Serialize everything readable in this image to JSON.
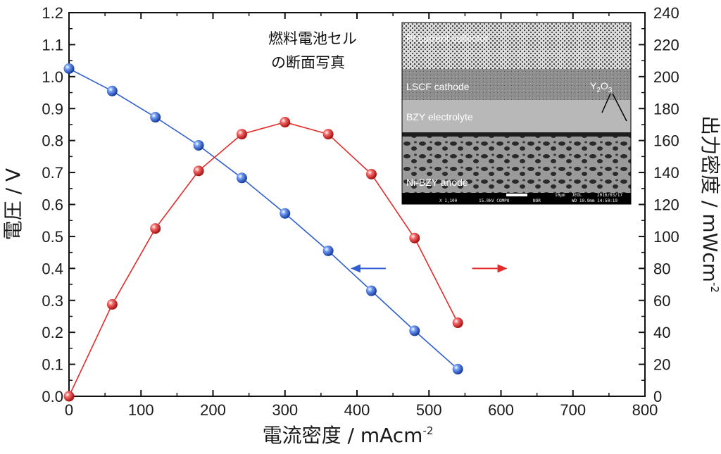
{
  "chart_data": {
    "type": "line",
    "x_axis": {
      "label": "電流密度 / mAcm",
      "label_sup": "-2",
      "range": [
        0,
        800
      ],
      "ticks": [
        0,
        100,
        200,
        300,
        400,
        500,
        600,
        700,
        800
      ]
    },
    "y_left": {
      "label": "電圧 / V",
      "range": [
        0.0,
        1.2
      ],
      "ticks": [
        "0.0",
        "0.1",
        "0.2",
        "0.3",
        "0.4",
        "0.5",
        "0.6",
        "0.7",
        "0.8",
        "0.9",
        "1.0",
        "1.1",
        "1.2"
      ]
    },
    "y_right": {
      "label": "出力密度 / mWcm",
      "label_sup": "-2",
      "range": [
        0,
        240
      ],
      "ticks": [
        0,
        20,
        40,
        60,
        80,
        100,
        120,
        140,
        160,
        180,
        200,
        220,
        240
      ]
    },
    "series": [
      {
        "axis": "left",
        "color": "#2f5fd0",
        "x": [
          0,
          60,
          120,
          180,
          240,
          300,
          360,
          420,
          480,
          540
        ],
        "y": [
          1.025,
          0.955,
          0.873,
          0.785,
          0.683,
          0.572,
          0.455,
          0.33,
          0.205,
          0.085
        ]
      },
      {
        "axis": "right",
        "color": "#e52a2a",
        "x": [
          0,
          60,
          120,
          180,
          240,
          300,
          360,
          420,
          480,
          540
        ],
        "y": [
          0,
          57.5,
          105,
          141,
          164,
          171.5,
          164,
          139,
          99,
          46
        ]
      }
    ],
    "arrows": [
      {
        "direction": "left",
        "color": "#2f5fd0",
        "x": 440,
        "y": 0.4
      },
      {
        "direction": "right",
        "color": "#e52a2a",
        "x": 560,
        "y": 0.4
      }
    ],
    "grid": false
  },
  "inset": {
    "title_line1": "燃料電池セル",
    "title_line2": "の断面写真",
    "layers": [
      "Pt current collector",
      "LSCF cathode",
      "BZY electrolyte",
      "Ni-BZY anode"
    ],
    "annotation": "Y2O3",
    "footer": [
      "X 1,100",
      "15.0kV COMPO",
      "NOR",
      "WD 10.9mm 14:50:19",
      "10μm",
      "JEOL",
      "2016/03/17"
    ]
  }
}
